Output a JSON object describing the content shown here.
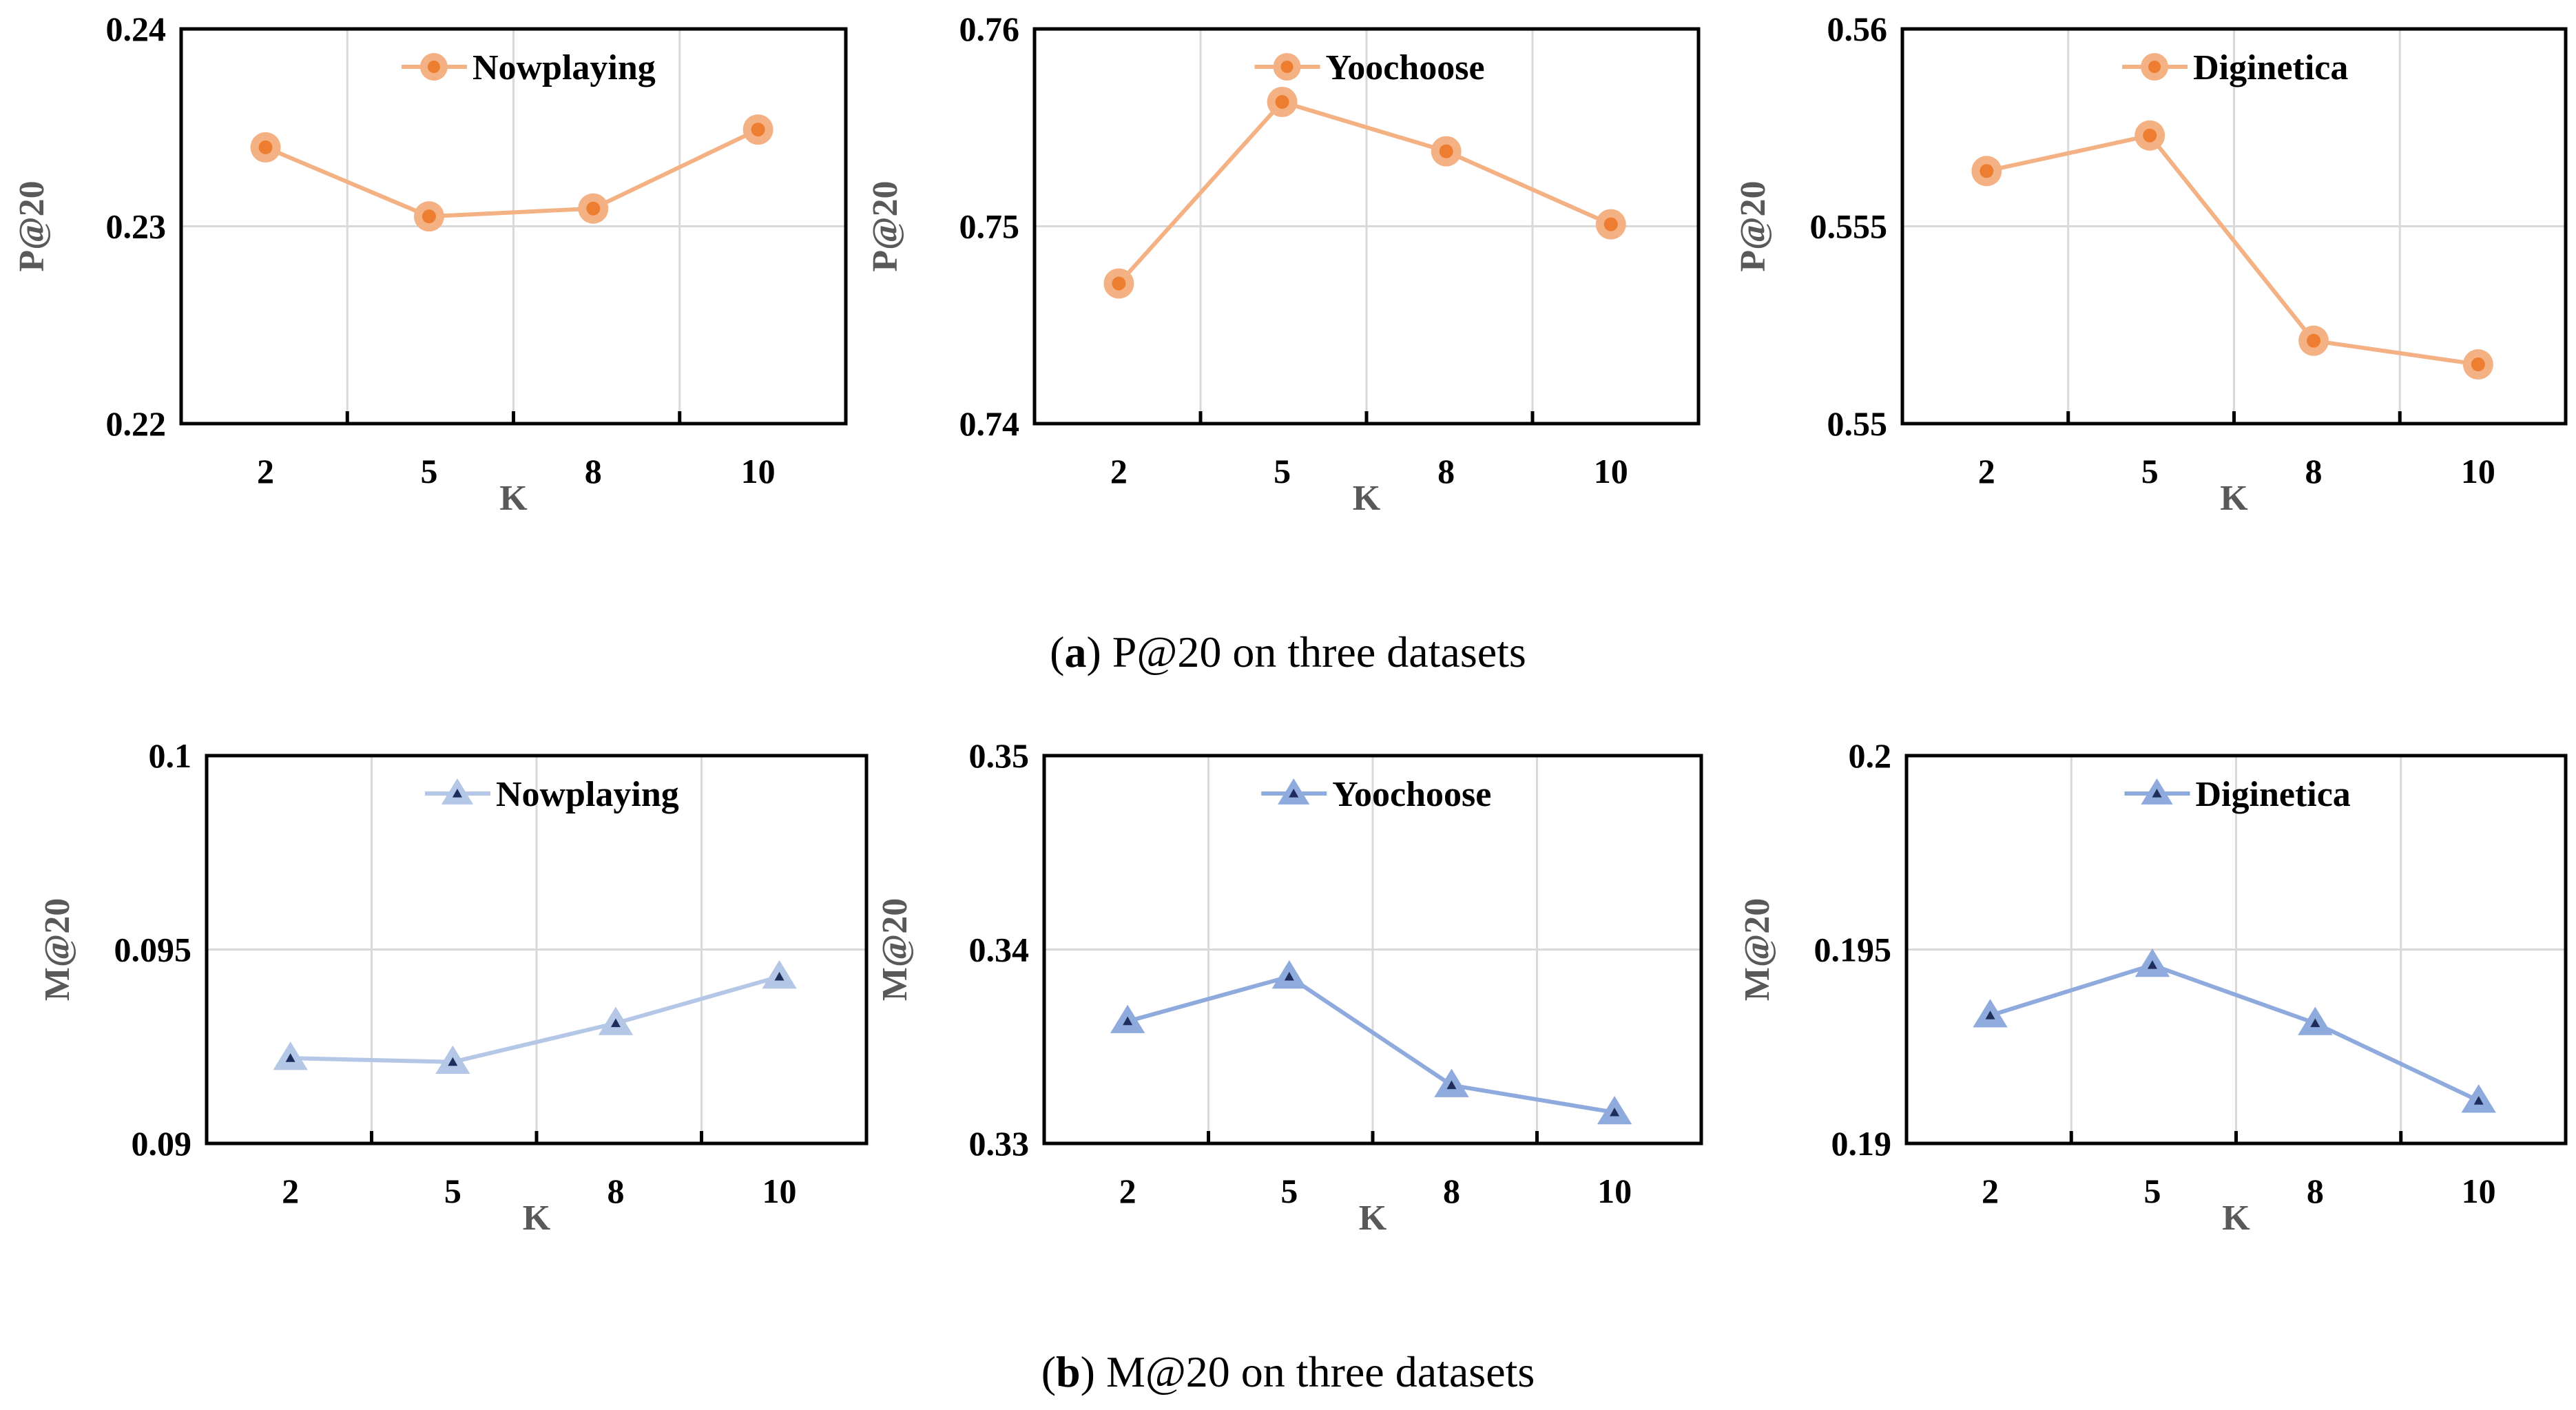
{
  "chart_data": [
    {
      "type": "line",
      "panel": "a",
      "dataset": "Nowplaying",
      "metric": "P@20",
      "ylabel": "P@20",
      "xlabel": "K",
      "categories": [
        "2",
        "5",
        "8",
        "10"
      ],
      "values": [
        0.234,
        0.2305,
        0.2309,
        0.2349
      ],
      "ylim": [
        0.22,
        0.24
      ],
      "yticks": [
        "0.22",
        "0.23",
        "0.24"
      ],
      "legend_position": "top-center",
      "color": "#f4b183",
      "marker": "circle"
    },
    {
      "type": "line",
      "panel": "a",
      "dataset": "Yoochoose",
      "metric": "P@20",
      "ylabel": "P@20",
      "xlabel": "K",
      "categories": [
        "2",
        "5",
        "8",
        "10"
      ],
      "values": [
        0.7471,
        0.7563,
        0.7538,
        0.7501
      ],
      "ylim": [
        0.74,
        0.76
      ],
      "yticks": [
        "0.74",
        "0.75",
        "0.76"
      ],
      "legend_position": "top-center",
      "color": "#f4b183",
      "marker": "circle"
    },
    {
      "type": "line",
      "panel": "a",
      "dataset": "Diginetica",
      "metric": "P@20",
      "ylabel": "P@20",
      "xlabel": "K",
      "categories": [
        "2",
        "5",
        "8",
        "10"
      ],
      "values": [
        0.5564,
        0.5573,
        0.5521,
        0.5515
      ],
      "ylim": [
        0.55,
        0.56
      ],
      "yticks": [
        "0.55",
        "0.555",
        "0.56"
      ],
      "legend_position": "top-center",
      "color": "#f4b183",
      "marker": "circle"
    },
    {
      "type": "line",
      "panel": "b",
      "dataset": "Nowplaying",
      "metric": "M@20",
      "ylabel": "M@20",
      "xlabel": "K",
      "categories": [
        "2",
        "5",
        "8",
        "10"
      ],
      "values": [
        0.0922,
        0.0921,
        0.0931,
        0.0943
      ],
      "ylim": [
        0.09,
        0.1
      ],
      "yticks": [
        "0.09",
        "0.095",
        "0.1"
      ],
      "legend_position": "top-center",
      "color": "#b4c7e7",
      "marker": "triangle"
    },
    {
      "type": "line",
      "panel": "b",
      "dataset": "Yoochoose",
      "metric": "M@20",
      "ylabel": "M@20",
      "xlabel": "K",
      "categories": [
        "2",
        "5",
        "8",
        "10"
      ],
      "values": [
        0.3363,
        0.3386,
        0.333,
        0.3316
      ],
      "ylim": [
        0.33,
        0.35
      ],
      "yticks": [
        "0.33",
        "0.34",
        "0.35"
      ],
      "legend_position": "top-center",
      "color": "#8faadc",
      "marker": "triangle"
    },
    {
      "type": "line",
      "panel": "b",
      "dataset": "Diginetica",
      "metric": "M@20",
      "ylabel": "M@20",
      "xlabel": "K",
      "categories": [
        "2",
        "5",
        "8",
        "10"
      ],
      "values": [
        0.1933,
        0.1946,
        0.1931,
        0.1911
      ],
      "ylim": [
        0.19,
        0.2
      ],
      "yticks": [
        "0.19",
        "0.195",
        "0.2"
      ],
      "legend_position": "top-center",
      "color": "#8faadc",
      "marker": "triangle"
    }
  ],
  "captions": {
    "a": {
      "letter": "a",
      "text": "P@20 on three datasets"
    },
    "b": {
      "letter": "b",
      "text": "M@20 on three datasets"
    }
  },
  "colors": {
    "orange_line": "#f4b183",
    "orange_marker_center": "#ed7d31",
    "blue_marker_center": "#1f2d5a",
    "axis": "#000000",
    "grid": "#d9d9d9"
  }
}
